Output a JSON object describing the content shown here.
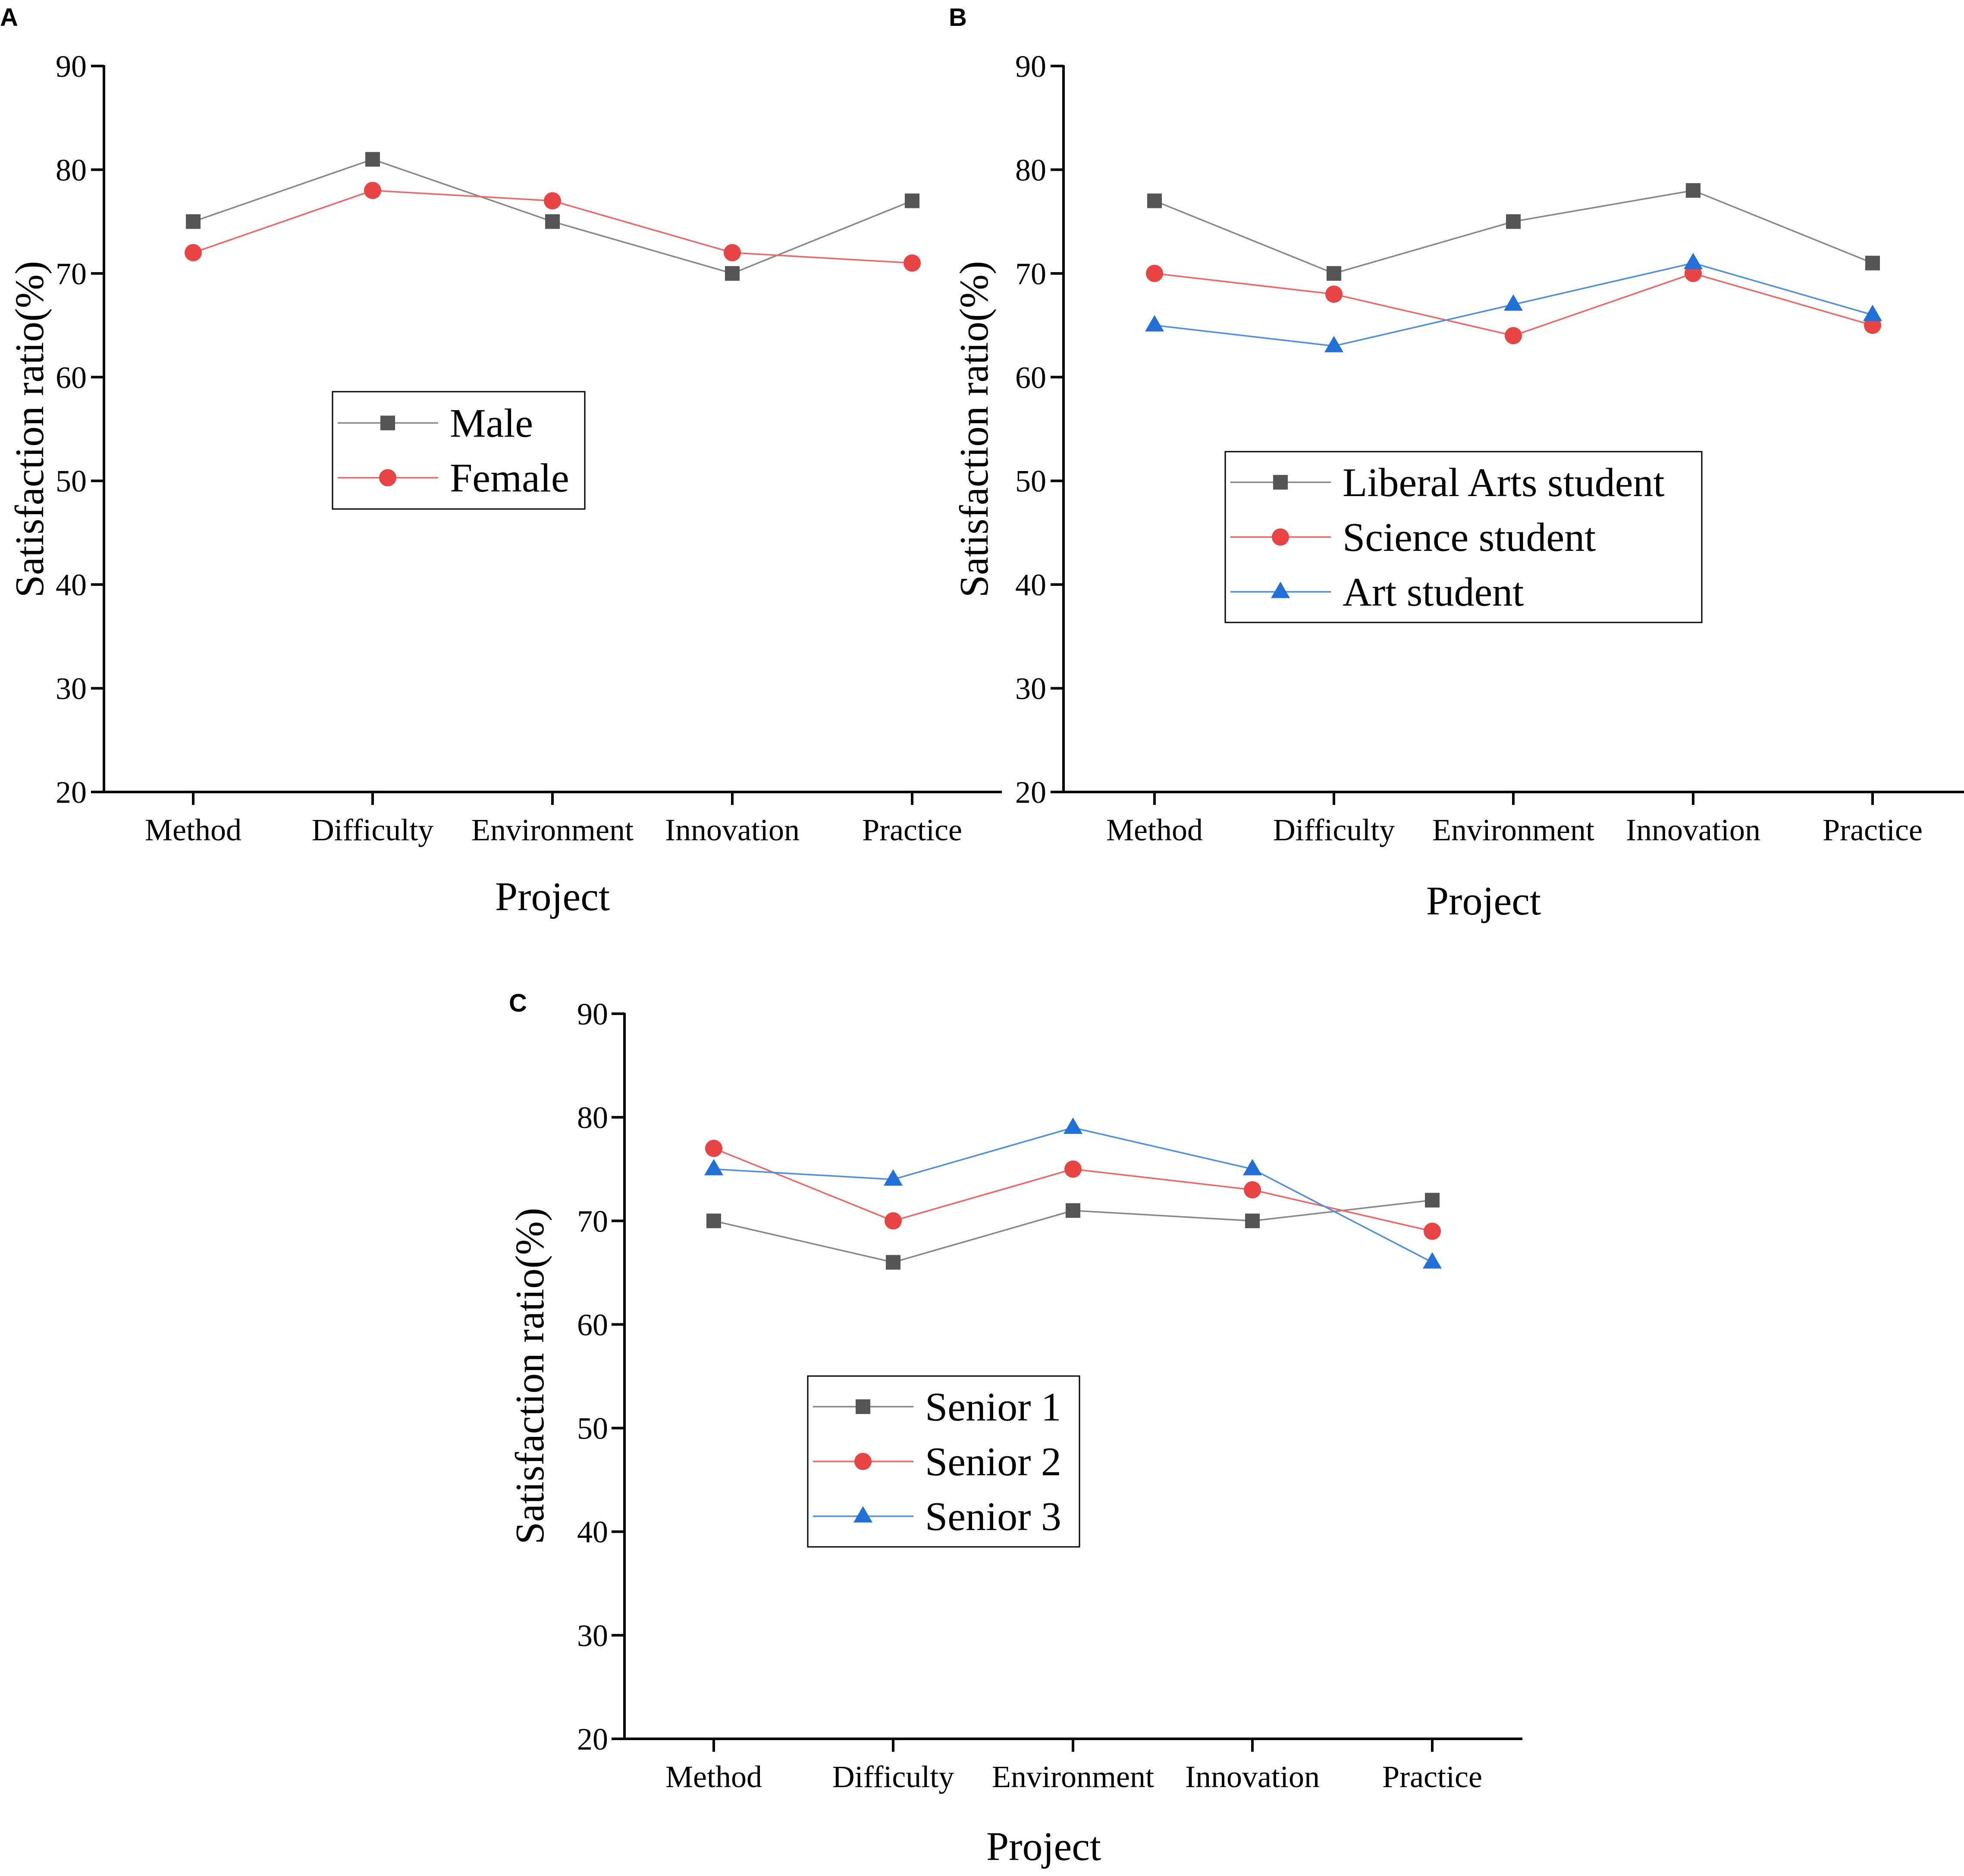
{
  "figure": {
    "panels_count": 3
  },
  "colors": {
    "axis": "#000000",
    "gray": "#555555",
    "red": "#e84444",
    "blue": "#2070d8",
    "gray_line": "#888888",
    "red_line": "#ee6666",
    "blue_line": "#4d8fe0"
  },
  "chart_data": [
    {
      "panel": "A",
      "type": "line",
      "categories": [
        "Method",
        "Difficulty",
        "Environment",
        "Innovation",
        "Practice"
      ],
      "xlabel": "Project",
      "ylabel": "Satisfaction ratio(%)",
      "ylim": [
        20,
        90
      ],
      "yticks": [
        20,
        30,
        40,
        50,
        60,
        70,
        80,
        90
      ],
      "grid": false,
      "legend_position": "center",
      "series": [
        {
          "name": "Male",
          "marker": "square",
          "color": "gray",
          "values": [
            75,
            81,
            75,
            70,
            77
          ]
        },
        {
          "name": "Female",
          "marker": "circle",
          "color": "red",
          "values": [
            72,
            78,
            77,
            72,
            71
          ]
        }
      ]
    },
    {
      "panel": "B",
      "type": "line",
      "categories": [
        "Method",
        "Difficulty",
        "Environment",
        "Innovation",
        "Practice"
      ],
      "xlabel": "Project",
      "ylabel": "Satisfaction ratio(%)",
      "ylim": [
        20,
        90
      ],
      "yticks": [
        20,
        30,
        40,
        50,
        60,
        70,
        80,
        90
      ],
      "grid": false,
      "legend_position": "center-right",
      "series": [
        {
          "name": "Liberal Arts student",
          "marker": "square",
          "color": "gray",
          "values": [
            77,
            70,
            75,
            78,
            71
          ]
        },
        {
          "name": "Science student",
          "marker": "circle",
          "color": "red",
          "values": [
            70,
            68,
            64,
            70,
            65
          ]
        },
        {
          "name": "Art student",
          "marker": "triangle",
          "color": "blue",
          "values": [
            65,
            63,
            67,
            71,
            66
          ]
        }
      ]
    },
    {
      "panel": "C",
      "type": "line",
      "categories": [
        "Method",
        "Difficulty",
        "Environment",
        "Innovation",
        "Practice"
      ],
      "xlabel": "Project",
      "ylabel": "Satisfaction ratio(%)",
      "ylim": [
        20,
        90
      ],
      "yticks": [
        20,
        30,
        40,
        50,
        60,
        70,
        80,
        90
      ],
      "grid": false,
      "legend_position": "center-left",
      "series": [
        {
          "name": "Senior 1",
          "marker": "square",
          "color": "gray",
          "values": [
            70,
            66,
            71,
            70,
            72
          ]
        },
        {
          "name": "Senior 2",
          "marker": "circle",
          "color": "red",
          "values": [
            77,
            70,
            75,
            73,
            69
          ]
        },
        {
          "name": "Senior 3",
          "marker": "triangle",
          "color": "blue",
          "values": [
            75,
            74,
            79,
            75,
            66
          ]
        }
      ]
    }
  ]
}
